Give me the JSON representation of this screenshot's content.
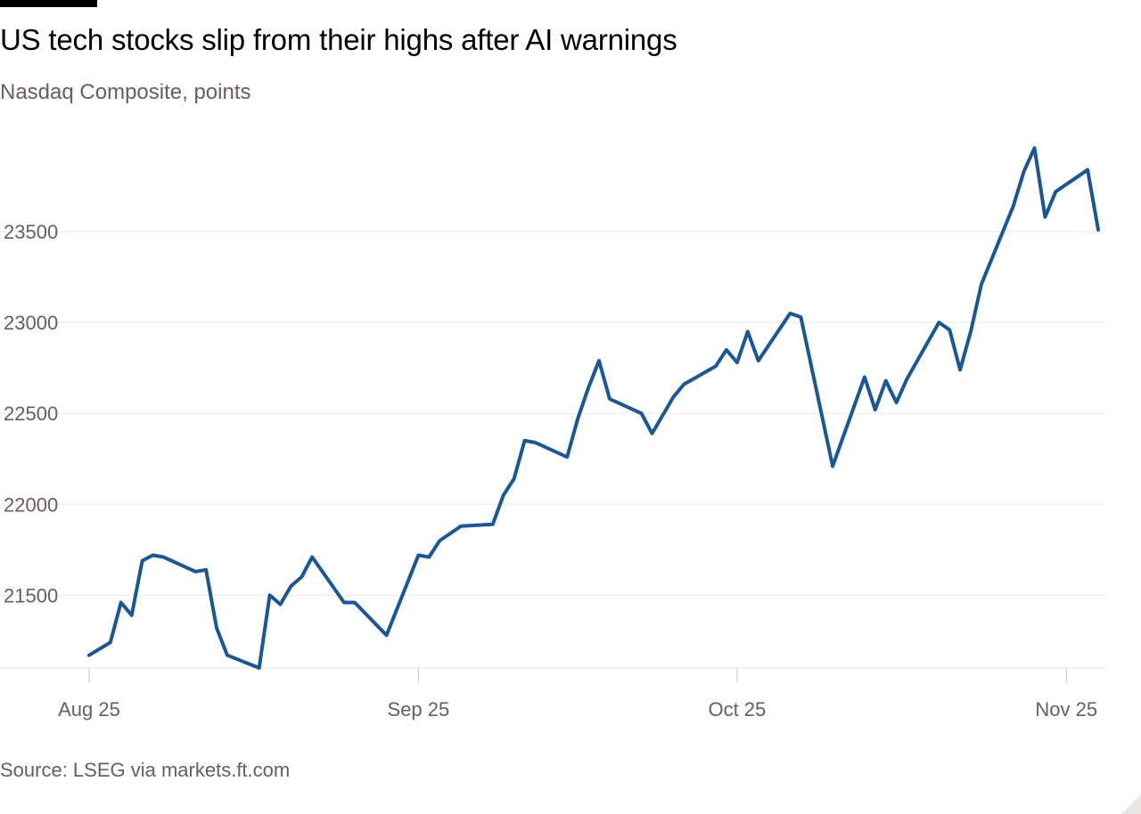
{
  "header": {
    "title": "US tech stocks slip from their highs after AI warnings",
    "subtitle": "Nasdaq Composite, points"
  },
  "footer": {
    "source": "Source: LSEG via markets.ft.com"
  },
  "colors": {
    "line": "#1a5698",
    "gridline": "#ebe8e5",
    "tick_text": "#66605c",
    "title_text": "#000000"
  },
  "chart_data": {
    "type": "line",
    "title": "US tech stocks slip from their highs after AI warnings",
    "subtitle": "Nasdaq Composite, points",
    "xlabel": "",
    "ylabel": "",
    "x_range": [
      "2025-08-01",
      "2025-11-04"
    ],
    "ylim": [
      21100,
      24000
    ],
    "y_ticks": [
      21500,
      22000,
      22500,
      23000,
      23500
    ],
    "x_ticks": [
      {
        "date": "2025-08-01",
        "label": "Aug 25"
      },
      {
        "date": "2025-09-01",
        "label": "Sep 25"
      },
      {
        "date": "2025-10-01",
        "label": "Oct 25"
      },
      {
        "date": "2025-11-01",
        "label": "Nov 25"
      }
    ],
    "grid": true,
    "legend": "none",
    "series": [
      {
        "points": [
          [
            "2025-08-01",
            21170
          ],
          [
            "2025-08-03",
            21240
          ],
          [
            "2025-08-04",
            21460
          ],
          [
            "2025-08-05",
            21390
          ],
          [
            "2025-08-06",
            21690
          ],
          [
            "2025-08-07",
            21720
          ],
          [
            "2025-08-08",
            21710
          ],
          [
            "2025-08-11",
            21630
          ],
          [
            "2025-08-12",
            21640
          ],
          [
            "2025-08-13",
            21320
          ],
          [
            "2025-08-14",
            21170
          ],
          [
            "2025-08-17",
            21100
          ],
          [
            "2025-08-18",
            21500
          ],
          [
            "2025-08-19",
            21450
          ],
          [
            "2025-08-20",
            21550
          ],
          [
            "2025-08-21",
            21600
          ],
          [
            "2025-08-22",
            21710
          ],
          [
            "2025-08-25",
            21460
          ],
          [
            "2025-08-26",
            21460
          ],
          [
            "2025-08-29",
            21280
          ],
          [
            "2025-09-01",
            21720
          ],
          [
            "2025-09-02",
            21710
          ],
          [
            "2025-09-03",
            21800
          ],
          [
            "2025-09-05",
            21880
          ],
          [
            "2025-09-08",
            21890
          ],
          [
            "2025-09-09",
            22050
          ],
          [
            "2025-09-10",
            22140
          ],
          [
            "2025-09-11",
            22350
          ],
          [
            "2025-09-12",
            22340
          ],
          [
            "2025-09-15",
            22260
          ],
          [
            "2025-09-16",
            22470
          ],
          [
            "2025-09-17",
            22640
          ],
          [
            "2025-09-18",
            22790
          ],
          [
            "2025-09-19",
            22580
          ],
          [
            "2025-09-22",
            22500
          ],
          [
            "2025-09-23",
            22390
          ],
          [
            "2025-09-24",
            22490
          ],
          [
            "2025-09-25",
            22590
          ],
          [
            "2025-09-26",
            22660
          ],
          [
            "2025-09-29",
            22760
          ],
          [
            "2025-09-30",
            22850
          ],
          [
            "2025-10-01",
            22780
          ],
          [
            "2025-10-02",
            22950
          ],
          [
            "2025-10-03",
            22790
          ],
          [
            "2025-10-06",
            23050
          ],
          [
            "2025-10-07",
            23030
          ],
          [
            "2025-10-10",
            22210
          ],
          [
            "2025-10-13",
            22700
          ],
          [
            "2025-10-14",
            22520
          ],
          [
            "2025-10-15",
            22680
          ],
          [
            "2025-10-16",
            22560
          ],
          [
            "2025-10-17",
            22690
          ],
          [
            "2025-10-20",
            23000
          ],
          [
            "2025-10-21",
            22960
          ],
          [
            "2025-10-22",
            22740
          ],
          [
            "2025-10-23",
            22950
          ],
          [
            "2025-10-24",
            23210
          ],
          [
            "2025-10-27",
            23640
          ],
          [
            "2025-10-28",
            23830
          ],
          [
            "2025-10-29",
            23960
          ],
          [
            "2025-10-30",
            23580
          ],
          [
            "2025-10-31",
            23720
          ],
          [
            "2025-11-03",
            23840
          ],
          [
            "2025-11-04",
            23510
          ]
        ]
      }
    ]
  }
}
